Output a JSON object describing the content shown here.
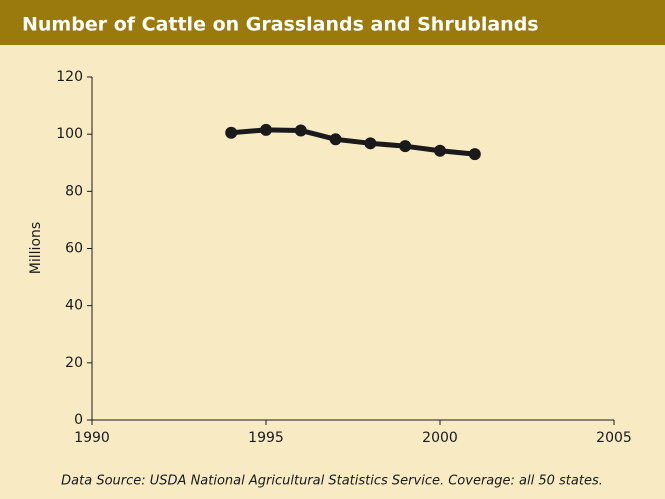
{
  "chart_data": {
    "type": "line",
    "title": "Number of Cattle on Grasslands and Shrublands",
    "y_label": "Millions",
    "source": "Data Source: USDA National Agricultural Statistics Service. Coverage: all 50 states.",
    "x": [
      1994,
      1995,
      1996,
      1997,
      1998,
      1999,
      2000,
      2001
    ],
    "series": [
      {
        "name": "Cattle",
        "color": "#1a1a1a",
        "values": [
          100.5,
          101.5,
          101.3,
          98.2,
          96.8,
          95.8,
          94.2,
          93.0
        ]
      }
    ],
    "xlim": [
      1990,
      2005
    ],
    "xticks": [
      1990,
      1995,
      2000,
      2005
    ],
    "ylim": [
      0,
      120
    ],
    "yticks": [
      0,
      20,
      40,
      60,
      80,
      100,
      120
    ],
    "grid": false
  }
}
